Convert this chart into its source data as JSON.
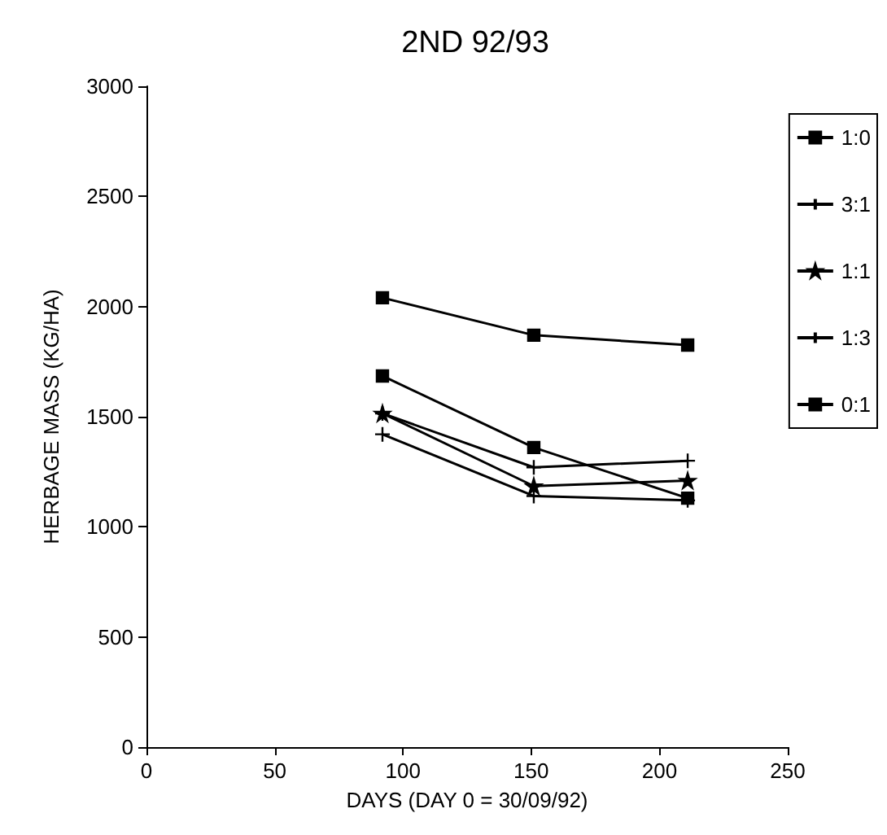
{
  "chart_data": {
    "type": "line",
    "title": "2ND 92/93",
    "xlabel": "DAYS (DAY 0 = 30/09/92)",
    "ylabel": "HERBAGE MASS (KG/HA)",
    "x": [
      92,
      151,
      211
    ],
    "series": [
      {
        "name": "1:0",
        "color": "#000000",
        "marker": "square",
        "values": [
          1685,
          1360,
          1130
        ]
      },
      {
        "name": "3:1",
        "color": "#000000",
        "marker": "cross",
        "values": [
          1420,
          1140,
          1120
        ]
      },
      {
        "name": "1:1",
        "color": "#000000",
        "marker": "star",
        "values": [
          1515,
          1185,
          1210
        ]
      },
      {
        "name": "1:3",
        "color": "#000000",
        "marker": "cross",
        "values": [
          1515,
          1270,
          1300
        ]
      },
      {
        "name": "0:1",
        "color": "#000000",
        "marker": "square",
        "values": [
          2040,
          1870,
          1825
        ]
      }
    ],
    "xlim": [
      0,
      250
    ],
    "xticks": [
      0,
      50,
      100,
      150,
      200,
      250
    ],
    "ylim": [
      0,
      3000
    ],
    "yticks": [
      0,
      500,
      1000,
      1500,
      2000,
      2500,
      3000
    ],
    "grid": false,
    "legend": "right",
    "line_style": "solid"
  }
}
